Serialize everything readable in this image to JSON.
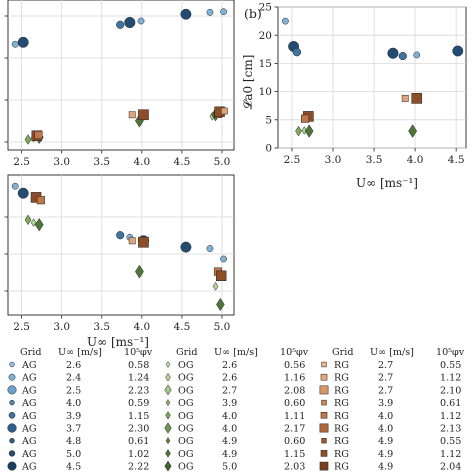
{
  "chart_data": [
    {
      "type": "scatter",
      "panel_label": "",
      "xlabel": "",
      "ylabel": "",
      "xlim": [
        2.33,
        5.15
      ],
      "ylim": [
        0.0,
        1.0
      ],
      "xticks": [
        "2.5",
        "3.0",
        "3.5",
        "4.0",
        "4.5",
        "5.0"
      ],
      "grid": true,
      "series": [
        {
          "grid": "AG",
          "points": [
            {
              "x": 2.42,
              "y": 0.705,
              "size": 0.59
            },
            {
              "x": 2.52,
              "y": 0.718,
              "size": 2.23
            },
            {
              "x": 3.73,
              "y": 0.835,
              "size": 1.15
            },
            {
              "x": 3.85,
              "y": 0.85,
              "size": 2.3
            },
            {
              "x": 3.99,
              "y": 0.86,
              "size": 0.59
            },
            {
              "x": 4.55,
              "y": 0.905,
              "size": 2.22
            },
            {
              "x": 4.85,
              "y": 0.918,
              "size": 0.61
            },
            {
              "x": 5.02,
              "y": 0.922,
              "size": 0.58
            }
          ]
        },
        {
          "grid": "OG",
          "points": [
            {
              "x": 2.58,
              "y": 0.07,
              "size": 1.16
            },
            {
              "x": 2.65,
              "y": 0.08,
              "size": 0.56
            },
            {
              "x": 2.72,
              "y": 0.085,
              "size": 2.08
            },
            {
              "x": 3.97,
              "y": 0.195,
              "size": 2.17
            },
            {
              "x": 4.88,
              "y": 0.225,
              "size": 0.6
            },
            {
              "x": 4.92,
              "y": 0.235,
              "size": 2.03
            }
          ]
        },
        {
          "grid": "RG",
          "points": [
            {
              "x": 2.69,
              "y": 0.095,
              "size": 2.1
            },
            {
              "x": 2.71,
              "y": 0.1,
              "size": 1.12
            },
            {
              "x": 3.88,
              "y": 0.235,
              "size": 0.61
            },
            {
              "x": 4.02,
              "y": 0.235,
              "size": 2.13
            },
            {
              "x": 4.95,
              "y": 0.24,
              "size": 1.12
            },
            {
              "x": 4.97,
              "y": 0.255,
              "size": 2.04
            },
            {
              "x": 5.03,
              "y": 0.26,
              "size": 0.55
            }
          ]
        }
      ]
    },
    {
      "type": "scatter",
      "panel_label": "(b)",
      "xlabel": "U∞ [ms⁻¹]",
      "ylabel": "𝓛a0 [cm]",
      "xlim": [
        2.33,
        4.62
      ],
      "ylim": [
        0,
        25
      ],
      "xticks": [
        "2.5",
        "3.0",
        "3.5",
        "4.0",
        "4.5"
      ],
      "yticks": [
        "0",
        "5",
        "10",
        "15",
        "20",
        "25"
      ],
      "grid": true,
      "series": [
        {
          "grid": "AG",
          "points": [
            {
              "x": 2.42,
              "y": 22.5,
              "size": 0.59
            },
            {
              "x": 2.52,
              "y": 18.0,
              "size": 2.23
            },
            {
              "x": 2.56,
              "y": 17.0,
              "size": 1.24
            },
            {
              "x": 3.73,
              "y": 16.8,
              "size": 2.3
            },
            {
              "x": 3.85,
              "y": 16.3,
              "size": 1.15
            },
            {
              "x": 4.02,
              "y": 16.5,
              "size": 0.59
            },
            {
              "x": 4.52,
              "y": 17.2,
              "size": 2.22
            }
          ]
        },
        {
          "grid": "OG",
          "points": [
            {
              "x": 2.58,
              "y": 3.0,
              "size": 1.16
            },
            {
              "x": 2.65,
              "y": 3.1,
              "size": 0.56
            },
            {
              "x": 2.71,
              "y": 3.0,
              "size": 2.08
            },
            {
              "x": 3.97,
              "y": 3.0,
              "size": 2.17
            }
          ]
        },
        {
          "grid": "RG",
          "points": [
            {
              "x": 2.7,
              "y": 5.6,
              "size": 2.1
            },
            {
              "x": 2.66,
              "y": 5.2,
              "size": 1.12
            },
            {
              "x": 3.88,
              "y": 8.8,
              "size": 0.61
            },
            {
              "x": 4.02,
              "y": 8.8,
              "size": 2.13
            }
          ]
        }
      ]
    },
    {
      "type": "scatter",
      "panel_label": "",
      "xlabel": "U∞ [ms⁻¹]",
      "ylabel": "",
      "xlim": [
        2.33,
        5.15
      ],
      "ylim": [
        0.0,
        1.0
      ],
      "xticks": [
        "2.5",
        "3.0",
        "3.5",
        "4.0",
        "4.5",
        "5.0"
      ],
      "grid": true,
      "series": [
        {
          "grid": "AG",
          "points": [
            {
              "x": 2.42,
              "y": 0.92,
              "size": 0.59
            },
            {
              "x": 2.52,
              "y": 0.87,
              "size": 2.23
            },
            {
              "x": 3.73,
              "y": 0.57,
              "size": 1.15
            },
            {
              "x": 3.85,
              "y": 0.555,
              "size": 0.59
            },
            {
              "x": 4.02,
              "y": 0.53,
              "size": 2.3
            },
            {
              "x": 4.55,
              "y": 0.485,
              "size": 2.22
            },
            {
              "x": 4.85,
              "y": 0.475,
              "size": 0.61
            },
            {
              "x": 5.02,
              "y": 0.4,
              "size": 0.58
            }
          ]
        },
        {
          "grid": "OG",
          "points": [
            {
              "x": 2.58,
              "y": 0.68,
              "size": 1.16
            },
            {
              "x": 2.65,
              "y": 0.66,
              "size": 0.56
            },
            {
              "x": 2.72,
              "y": 0.645,
              "size": 2.08
            },
            {
              "x": 3.97,
              "y": 0.31,
              "size": 2.17
            },
            {
              "x": 4.92,
              "y": 0.205,
              "size": 0.6
            },
            {
              "x": 4.98,
              "y": 0.075,
              "size": 2.03
            }
          ]
        },
        {
          "grid": "RG",
          "points": [
            {
              "x": 2.68,
              "y": 0.84,
              "size": 2.1
            },
            {
              "x": 2.74,
              "y": 0.82,
              "size": 1.12
            },
            {
              "x": 3.88,
              "y": 0.53,
              "size": 0.61
            },
            {
              "x": 4.02,
              "y": 0.52,
              "size": 2.13
            },
            {
              "x": 4.95,
              "y": 0.31,
              "size": 1.12
            },
            {
              "x": 4.99,
              "y": 0.28,
              "size": 2.04
            }
          ]
        }
      ]
    }
  ],
  "legend": {
    "columns": [
      {
        "grid_header": "Grid",
        "u_header": "U∞ [m/s]",
        "phi_header": "10⁵φv",
        "marker": "circle",
        "rows": [
          {
            "grid": "AG",
            "u": "2.6",
            "phi": "0.58"
          },
          {
            "grid": "AG",
            "u": "2.4",
            "phi": "1.24"
          },
          {
            "grid": "AG",
            "u": "2.5",
            "phi": "2.23"
          },
          {
            "grid": "AG",
            "u": "4.0",
            "phi": "0.59"
          },
          {
            "grid": "AG",
            "u": "3.9",
            "phi": "1.15"
          },
          {
            "grid": "AG",
            "u": "3.7",
            "phi": "2.30"
          },
          {
            "grid": "AG",
            "u": "4.8",
            "phi": "0.61"
          },
          {
            "grid": "AG",
            "u": "5.0",
            "phi": "1.02"
          },
          {
            "grid": "AG",
            "u": "4.5",
            "phi": "2.22"
          }
        ]
      },
      {
        "grid_header": "Grid",
        "u_header": "U∞ [m/s]",
        "phi_header": "10⁵φv",
        "marker": "diamond",
        "rows": [
          {
            "grid": "OG",
            "u": "2.6",
            "phi": "0.56"
          },
          {
            "grid": "OG",
            "u": "2.6",
            "phi": "1.16"
          },
          {
            "grid": "OG",
            "u": "2.7",
            "phi": "2.08"
          },
          {
            "grid": "OG",
            "u": "3.9",
            "phi": "0.60"
          },
          {
            "grid": "OG",
            "u": "4.0",
            "phi": "1.11"
          },
          {
            "grid": "OG",
            "u": "4.0",
            "phi": "2.17"
          },
          {
            "grid": "OG",
            "u": "4.9",
            "phi": "0.60"
          },
          {
            "grid": "OG",
            "u": "4.9",
            "phi": "1.15"
          },
          {
            "grid": "OG",
            "u": "5.0",
            "phi": "2.03"
          }
        ]
      },
      {
        "grid_header": "Grid",
        "u_header": "U∞ [m/s]",
        "phi_header": "10⁵φv",
        "marker": "square",
        "rows": [
          {
            "grid": "RG",
            "u": "2.7",
            "phi": "0.55"
          },
          {
            "grid": "RG",
            "u": "2.7",
            "phi": "1.12"
          },
          {
            "grid": "RG",
            "u": "2.7",
            "phi": "2.10"
          },
          {
            "grid": "RG",
            "u": "3.9",
            "phi": "0.61"
          },
          {
            "grid": "RG",
            "u": "4.0",
            "phi": "1.12"
          },
          {
            "grid": "RG",
            "u": "4.0",
            "phi": "2.13"
          },
          {
            "grid": "RG",
            "u": "4.9",
            "phi": "0.55"
          },
          {
            "grid": "RG",
            "u": "4.9",
            "phi": "1.12"
          },
          {
            "grid": "RG",
            "u": "4.9",
            "phi": "2.04"
          }
        ]
      }
    ]
  },
  "colors": {
    "AG": [
      "#8cc0de",
      "#7fb2d6",
      "#6aa1cc",
      "#4f86b3",
      "#3f73a0",
      "#2f608c",
      "#2b5a84",
      "#234c73",
      "#1b3f62"
    ],
    "OG": [
      "#c4e2a6",
      "#b4d594",
      "#a3c884",
      "#8fb86f",
      "#7fa85f",
      "#6e9650",
      "#5f8746",
      "#4f763a",
      "#3f6430"
    ],
    "RG": [
      "#eab48a",
      "#e2a578",
      "#d89668",
      "#cc8656",
      "#bf7648",
      "#b0673b",
      "#9f5a31",
      "#8c4d28",
      "#793f1f"
    ],
    "edge": "#222222",
    "grid": "#d8d8d8"
  }
}
